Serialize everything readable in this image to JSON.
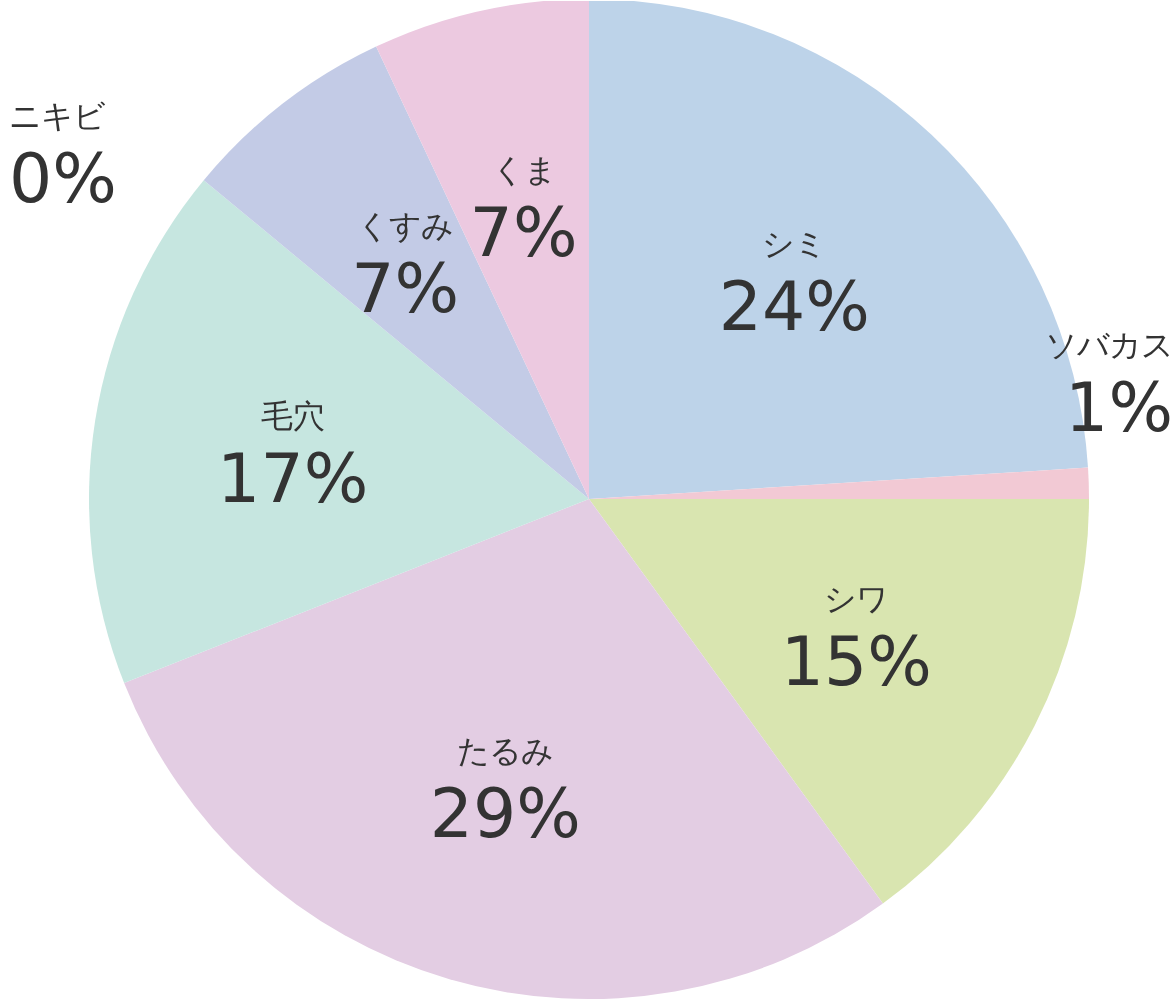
{
  "chart_data": {
    "type": "pie",
    "categories": [
      "シミ",
      "ソバカス",
      "シワ",
      "たるみ",
      "毛穴",
      "ニキビ",
      "くすみ",
      "くま"
    ],
    "values": [
      24,
      1,
      15,
      29,
      17,
      0,
      7,
      7
    ],
    "value_labels": [
      "24%",
      "1%",
      "15%",
      "29%",
      "17%",
      "0%",
      "7%",
      "7%"
    ],
    "colors": [
      "#bdd3e9",
      "#f2c9d4",
      "#d9e5b0",
      "#e3cde3",
      "#c6e6e0",
      "#c8e6c9",
      "#c3cbe6",
      "#ecc9e0"
    ],
    "legend": false
  }
}
